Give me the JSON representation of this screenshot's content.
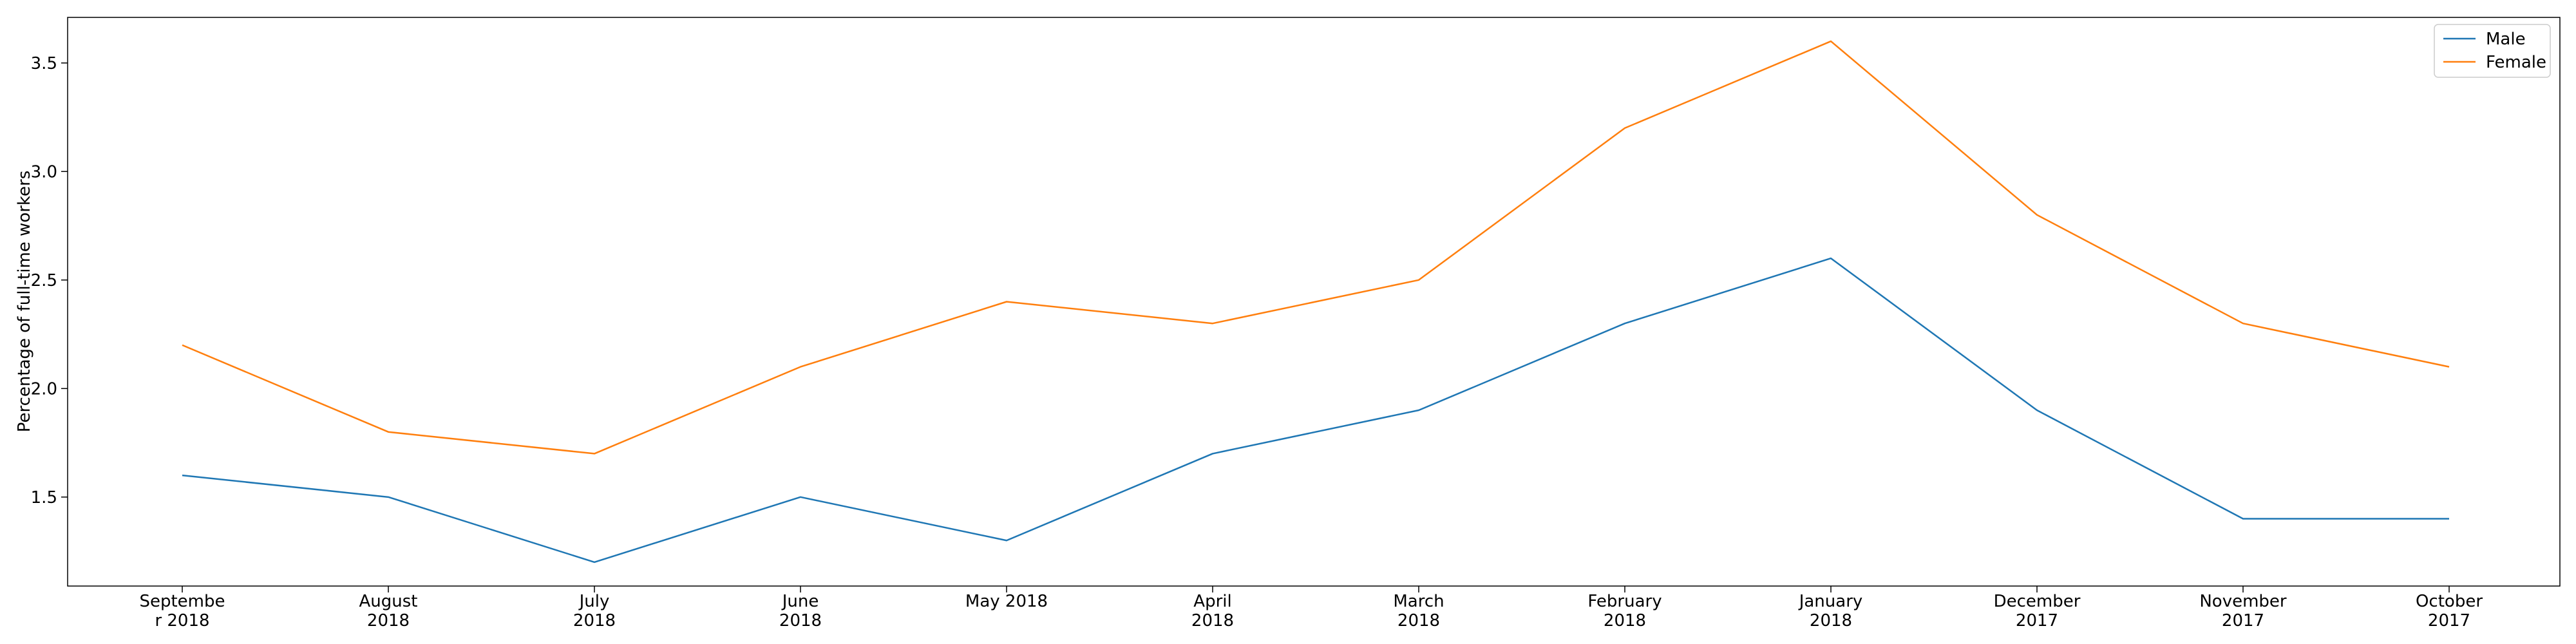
{
  "chart_data": {
    "type": "line",
    "categories": [
      [
        "Septembe",
        "r 2018"
      ],
      [
        "August",
        "2018"
      ],
      [
        "July",
        "2018"
      ],
      [
        "June",
        "2018"
      ],
      [
        "May 2018"
      ],
      [
        "April",
        "2018"
      ],
      [
        "March",
        "2018"
      ],
      [
        "February",
        "2018"
      ],
      [
        "January",
        "2018"
      ],
      [
        "December",
        "2017"
      ],
      [
        "November",
        "2017"
      ],
      [
        "October",
        "2017"
      ]
    ],
    "series": [
      {
        "name": "Male",
        "color": "#1f77b4",
        "values": [
          1.6,
          1.5,
          1.2,
          1.5,
          1.3,
          1.7,
          1.9,
          2.3,
          2.6,
          1.9,
          1.4,
          1.4
        ]
      },
      {
        "name": "Female",
        "color": "#ff7f0e",
        "values": [
          2.2,
          1.8,
          1.7,
          2.1,
          2.4,
          2.3,
          2.5,
          3.2,
          3.6,
          2.8,
          2.3,
          2.1
        ]
      }
    ],
    "ylabel": "Percentage of full-time workers",
    "yticks": [
      "1.5",
      "2.0",
      "2.5",
      "3.0",
      "3.5"
    ],
    "ylim": [
      1.09,
      3.71
    ],
    "grid": false,
    "legend": "top-right"
  }
}
